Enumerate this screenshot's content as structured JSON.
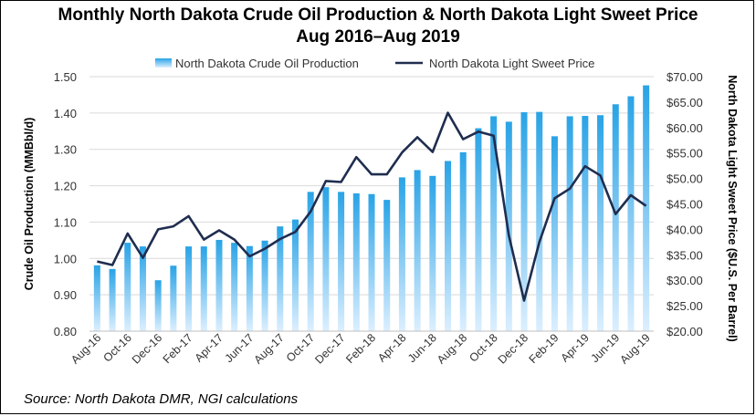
{
  "title_line1": "Monthly North Dakota Crude Oil Production & North Dakota Light Sweet Price",
  "title_line2": "Aug 2016–Aug 2019",
  "source": "Source: North Dakota DMR, NGI calculations",
  "colors": {
    "bar_top": "#29a3e6",
    "bar_bottom": "#dcefff",
    "line": "#1f2d4f",
    "grid": "#d9d9d9",
    "text": "#333333"
  },
  "chart_data": {
    "type": "bar",
    "title": "Monthly North Dakota Crude Oil Production & North Dakota Light Sweet Price Aug 2016–Aug 2019",
    "ylabel_left": "Crude Oil Production (MMBbl/d)",
    "ylabel_right": "North Dakota Light Sweet Price ($U.S. Per Barrel)",
    "ylim_left": [
      0.8,
      1.5
    ],
    "ylim_right": [
      20,
      70
    ],
    "y_ticks_left": [
      "0.80",
      "0.90",
      "1.00",
      "1.10",
      "1.20",
      "1.30",
      "1.40",
      "1.50"
    ],
    "y_ticks_right": [
      "$20.00",
      "$25.00",
      "$30.00",
      "$35.00",
      "$40.00",
      "$45.00",
      "$50.00",
      "$55.00",
      "$60.00",
      "$65.00",
      "$70.00"
    ],
    "legend_position": "top",
    "grid": true,
    "categories": [
      "Aug-16",
      "Sep-16",
      "Oct-16",
      "Nov-16",
      "Dec-16",
      "Jan-17",
      "Feb-17",
      "Mar-17",
      "Apr-17",
      "May-17",
      "Jun-17",
      "Jul-17",
      "Aug-17",
      "Sep-17",
      "Oct-17",
      "Nov-17",
      "Dec-17",
      "Jan-18",
      "Feb-18",
      "Mar-18",
      "Apr-18",
      "May-18",
      "Jun-18",
      "Jul-18",
      "Aug-18",
      "Sep-18",
      "Oct-18",
      "Nov-18",
      "Dec-18",
      "Jan-19",
      "Feb-19",
      "Mar-19",
      "Apr-19",
      "May-19",
      "Jun-19",
      "Jul-19",
      "Aug-19"
    ],
    "x_tick_labels": [
      "Aug-16",
      "Oct-16",
      "Dec-16",
      "Feb-17",
      "Apr-17",
      "Jun-17",
      "Aug-17",
      "Oct-17",
      "Dec-17",
      "Feb-18",
      "Apr-18",
      "Jun-18",
      "Aug-18",
      "Oct-18",
      "Dec-18",
      "Feb-19",
      "Apr-19",
      "Jun-19",
      "Aug-19"
    ],
    "series": [
      {
        "name": "North Dakota Crude Oil Production",
        "type": "bar",
        "axis": "left",
        "values": [
          0.981,
          0.971,
          1.043,
          1.033,
          0.94,
          0.98,
          1.033,
          1.033,
          1.051,
          1.043,
          1.034,
          1.049,
          1.088,
          1.107,
          1.183,
          1.196,
          1.183,
          1.179,
          1.177,
          1.161,
          1.223,
          1.243,
          1.227,
          1.268,
          1.292,
          1.358,
          1.391,
          1.376,
          1.402,
          1.403,
          1.336,
          1.391,
          1.392,
          1.394,
          1.424,
          1.446,
          1.476
        ]
      },
      {
        "name": "North Dakota Light Sweet Price",
        "type": "line",
        "axis": "right",
        "values": [
          33.7,
          33.0,
          39.2,
          34.4,
          40.0,
          40.6,
          42.6,
          38.0,
          39.8,
          38.0,
          34.7,
          36.2,
          38.1,
          39.5,
          43.5,
          49.5,
          49.3,
          54.2,
          50.8,
          50.8,
          55.1,
          58.1,
          55.2,
          62.9,
          57.7,
          59.2,
          58.4,
          38.8,
          26.0,
          37.5,
          46.1,
          48.0,
          52.4,
          50.6,
          43.0,
          46.7,
          44.6
        ]
      }
    ]
  }
}
